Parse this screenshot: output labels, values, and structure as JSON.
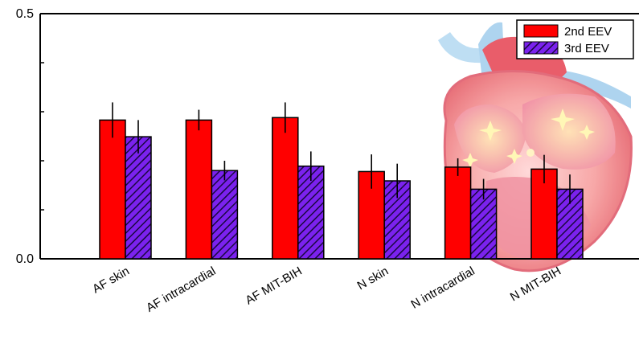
{
  "chart_data": {
    "type": "bar",
    "categories": [
      "AF skin",
      "AF intracardial",
      "AF MIT-BIH",
      "N skin",
      "N intracardial",
      "N MIT-BIH"
    ],
    "ylim": [
      0,
      0.5
    ],
    "yticks": [
      {
        "value": 0.0,
        "label": "0.0"
      },
      {
        "value": 0.5,
        "label": "0.5"
      }
    ],
    "yticks_minor": [
      0.1,
      0.2,
      0.3,
      0.4
    ],
    "series": [
      {
        "name": "2nd EEV",
        "color": "#ff0000",
        "pattern": "solid",
        "values": [
          0.283,
          0.283,
          0.288,
          0.178,
          0.187,
          0.183
        ],
        "errors": [
          0.036,
          0.021,
          0.031,
          0.035,
          0.018,
          0.029
        ]
      },
      {
        "name": "3rd EEV",
        "color": "#7b22ee",
        "pattern": "diagonal-hatch",
        "values": [
          0.249,
          0.18,
          0.189,
          0.159,
          0.142,
          0.142
        ],
        "errors": [
          0.034,
          0.02,
          0.03,
          0.035,
          0.021,
          0.03
        ]
      }
    ],
    "legend_position": "top-right",
    "decoration": "heart-illustration"
  }
}
